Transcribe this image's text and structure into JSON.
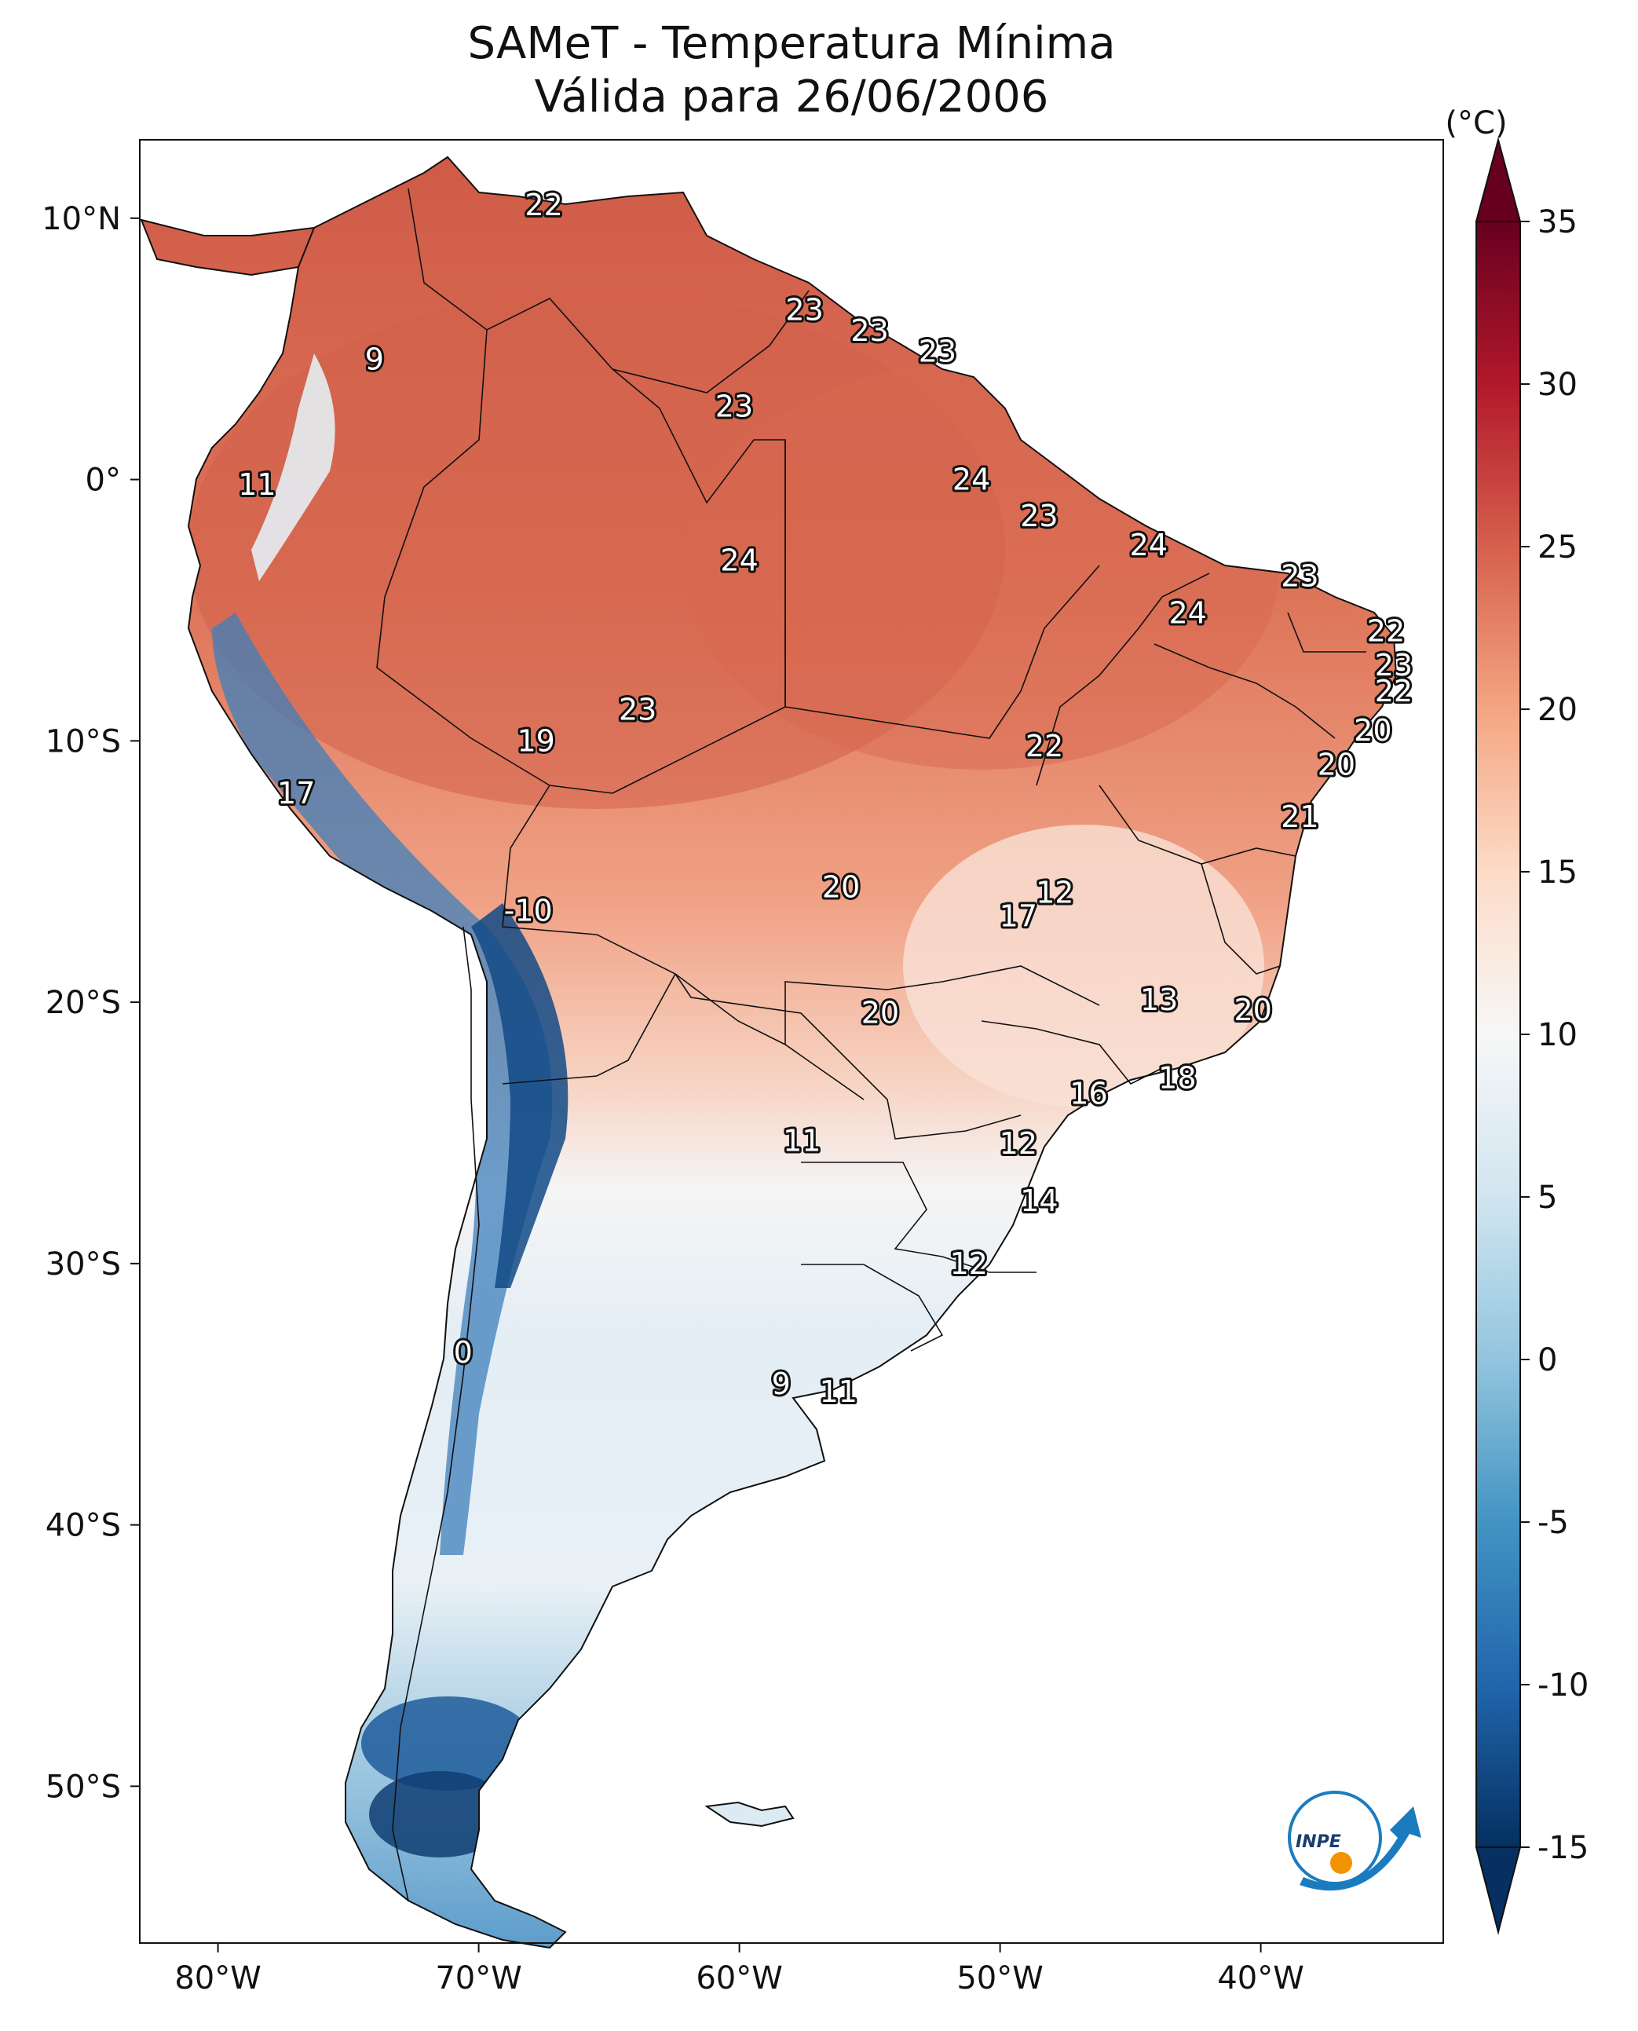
{
  "title": {
    "line1": "SAMeT - Temperatura Mínima",
    "line2": "Válida para 26/06/2006"
  },
  "map": {
    "projection": "PlateCarree",
    "lon_range": [
      -83,
      -33
    ],
    "lat_range": [
      -56,
      13
    ],
    "lon_ticks": [
      {
        "value": -80,
        "label": "80°W"
      },
      {
        "value": -70,
        "label": "70°W"
      },
      {
        "value": -60,
        "label": "60°W"
      },
      {
        "value": -50,
        "label": "50°W"
      },
      {
        "value": -40,
        "label": "40°W"
      }
    ],
    "lat_ticks": [
      {
        "value": 10,
        "label": "10°N"
      },
      {
        "value": 0,
        "label": "0°"
      },
      {
        "value": -10,
        "label": "10°S"
      },
      {
        "value": -20,
        "label": "20°S"
      },
      {
        "value": -30,
        "label": "30°S"
      },
      {
        "value": -40,
        "label": "40°S"
      },
      {
        "value": -50,
        "label": "50°S"
      }
    ]
  },
  "colorbar": {
    "unit_label": "(°C)",
    "range": [
      -15,
      35
    ],
    "extend": "both",
    "ticks": [
      "35",
      "30",
      "25",
      "20",
      "15",
      "10",
      "5",
      "0",
      "-5",
      "-10",
      "-15"
    ],
    "colors": [
      "#053061",
      "#2166ac",
      "#4393c3",
      "#92c5de",
      "#d1e5f0",
      "#f7f7f7",
      "#fddbc7",
      "#f4a582",
      "#d6604d",
      "#b2182b",
      "#67001f"
    ]
  },
  "city_values": [
    {
      "lon": -67.5,
      "lat": 10.5,
      "text": "22"
    },
    {
      "lon": -57.5,
      "lat": 6.5,
      "text": "23"
    },
    {
      "lon": -55.0,
      "lat": 5.7,
      "text": "23"
    },
    {
      "lon": -52.4,
      "lat": 4.9,
      "text": "23"
    },
    {
      "lon": -60.2,
      "lat": 2.8,
      "text": "23"
    },
    {
      "lon": -74.0,
      "lat": 4.6,
      "text": "9"
    },
    {
      "lon": -78.5,
      "lat": -0.2,
      "text": "11"
    },
    {
      "lon": -51.1,
      "lat": 0.0,
      "text": "24"
    },
    {
      "lon": -48.5,
      "lat": -1.4,
      "text": "23"
    },
    {
      "lon": -60.0,
      "lat": -3.1,
      "text": "24"
    },
    {
      "lon": -44.3,
      "lat": -2.5,
      "text": "24"
    },
    {
      "lon": -38.5,
      "lat": -3.7,
      "text": "23"
    },
    {
      "lon": -42.8,
      "lat": -5.1,
      "text": "24"
    },
    {
      "lon": -35.2,
      "lat": -5.8,
      "text": "22"
    },
    {
      "lon": -34.9,
      "lat": -7.1,
      "text": "23"
    },
    {
      "lon": -34.9,
      "lat": -8.1,
      "text": "22"
    },
    {
      "lon": -35.7,
      "lat": -9.6,
      "text": "20"
    },
    {
      "lon": -37.1,
      "lat": -10.9,
      "text": "20"
    },
    {
      "lon": -38.5,
      "lat": -12.9,
      "text": "21"
    },
    {
      "lon": -63.9,
      "lat": -8.8,
      "text": "23"
    },
    {
      "lon": -67.8,
      "lat": -10.0,
      "text": "19"
    },
    {
      "lon": -48.3,
      "lat": -10.2,
      "text": "22"
    },
    {
      "lon": -77.0,
      "lat": -12.0,
      "text": "17"
    },
    {
      "lon": -68.1,
      "lat": -16.5,
      "text": "-10"
    },
    {
      "lon": -56.1,
      "lat": -15.6,
      "text": "20"
    },
    {
      "lon": -47.9,
      "lat": -15.8,
      "text": "12"
    },
    {
      "lon": -49.3,
      "lat": -16.7,
      "text": "17"
    },
    {
      "lon": -43.9,
      "lat": -19.9,
      "text": "13"
    },
    {
      "lon": -40.3,
      "lat": -20.3,
      "text": "20"
    },
    {
      "lon": -54.6,
      "lat": -20.4,
      "text": "20"
    },
    {
      "lon": -43.2,
      "lat": -22.9,
      "text": "18"
    },
    {
      "lon": -46.6,
      "lat": -23.5,
      "text": "16"
    },
    {
      "lon": -57.6,
      "lat": -25.3,
      "text": "11"
    },
    {
      "lon": -49.3,
      "lat": -25.4,
      "text": "12"
    },
    {
      "lon": -48.5,
      "lat": -27.6,
      "text": "14"
    },
    {
      "lon": -51.2,
      "lat": -30.0,
      "text": "12"
    },
    {
      "lon": -70.6,
      "lat": -33.4,
      "text": "0"
    },
    {
      "lon": -58.4,
      "lat": -34.6,
      "text": "9"
    },
    {
      "lon": -56.2,
      "lat": -34.9,
      "text": "11"
    }
  ],
  "logo": {
    "text": "INPE"
  }
}
